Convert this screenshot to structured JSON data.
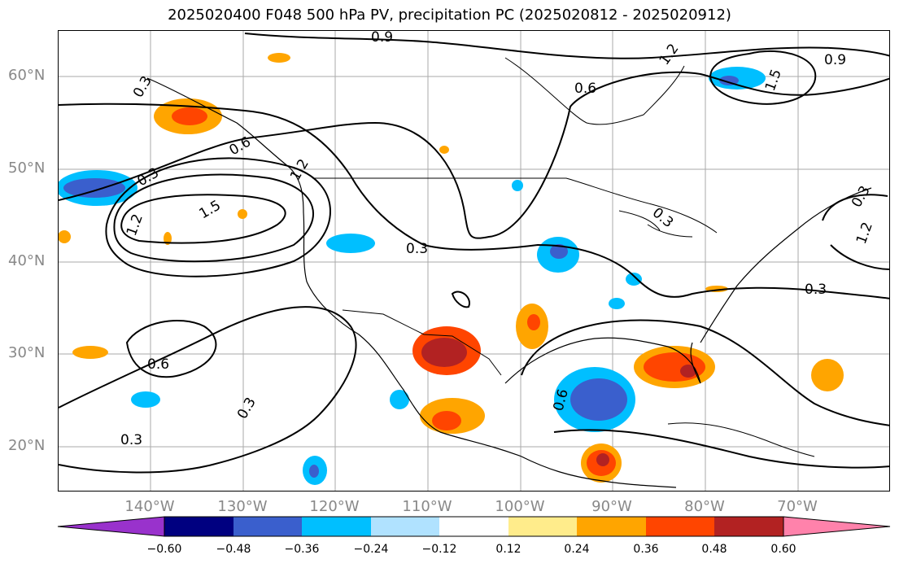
{
  "title": "2025020400 F048 500 hPa PV, precipitation PC (2025020812 - 2025020912)",
  "latitude_labels": [
    {
      "lat": 60,
      "text": "60°N"
    },
    {
      "lat": 50,
      "text": "50°N"
    },
    {
      "lat": 40,
      "text": "40°N"
    },
    {
      "lat": 30,
      "text": "30°N"
    },
    {
      "lat": 20,
      "text": "20°N"
    }
  ],
  "longitude_labels": [
    {
      "lon": -140,
      "text": "140°W"
    },
    {
      "lon": -130,
      "text": "130°W"
    },
    {
      "lon": -120,
      "text": "120°W"
    },
    {
      "lon": -110,
      "text": "110°W"
    },
    {
      "lon": -100,
      "text": "100°W"
    },
    {
      "lon": -90,
      "text": "90°W"
    },
    {
      "lon": -80,
      "text": "80°W"
    },
    {
      "lon": -70,
      "text": "70°W"
    }
  ],
  "extent": {
    "lon_min": -150,
    "lon_max": -60,
    "lat_min": 15,
    "lat_max": 65
  },
  "contour_labels": [
    "0.9",
    "1.2",
    "0.9",
    "1.5",
    "0.6",
    "0.3",
    "0.6",
    "0.3",
    "1.2",
    "1.5",
    "1.2",
    "0.3",
    "0.3",
    "0.3",
    "1.2",
    "0.3",
    "0.6",
    "0.3",
    "0.3",
    "0.6"
  ],
  "colorbar": {
    "ticks": [
      "−0.60",
      "−0.48",
      "−0.36",
      "−0.24",
      "−0.12",
      "0.12",
      "0.24",
      "0.36",
      "0.48",
      "0.60"
    ],
    "colors": {
      "below": "#9932cc",
      "neg60_48": "#000080",
      "neg48_36": "#3a5fcd",
      "neg36_24": "#00bfff",
      "neg24_12": "#b0e2ff",
      "neg12_12": "#ffffff",
      "pos12_24": "#ffec8b",
      "pos24_36": "#ffa500",
      "pos36_48": "#ff4500",
      "pos48_60": "#b22222",
      "above": "#ff82ab"
    }
  }
}
